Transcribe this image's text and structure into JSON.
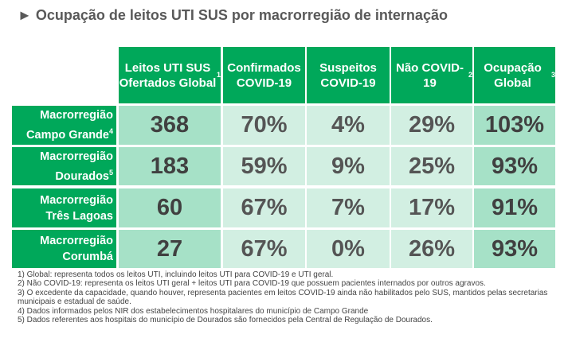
{
  "title": "► Ocupação de leitos UTI SUS por macrorregião de internação",
  "headers": [
    {
      "text": "Leitos UTI SUS Ofertados Global",
      "sup": "1"
    },
    {
      "text": "Confirmados COVID-19",
      "sup": ""
    },
    {
      "text": "Suspeitos COVID-19",
      "sup": ""
    },
    {
      "text": "Não COVID-19",
      "sup": "2"
    },
    {
      "text": "Ocupação Global",
      "sup": "3"
    }
  ],
  "rows": [
    {
      "l1": "Macrorregião",
      "l2": "Campo Grande",
      "sup": "4",
      "values": [
        "368",
        "70%",
        "4%",
        "29%",
        "103%"
      ]
    },
    {
      "l1": "Macrorregião",
      "l2": "Dourados",
      "sup": "5",
      "values": [
        "183",
        "59%",
        "9%",
        "25%",
        "93%"
      ]
    },
    {
      "l1": "Macrorregião",
      "l2": "Três Lagoas",
      "sup": "",
      "values": [
        "60",
        "67%",
        "7%",
        "17%",
        "91%"
      ]
    },
    {
      "l1": "Macrorregião",
      "l2": "Corumbá",
      "sup": "",
      "values": [
        "27",
        "67%",
        "0%",
        "26%",
        "93%"
      ]
    }
  ],
  "notes": [
    "1) Global: representa todos os leitos UTI, incluindo leitos UTI para COVID-19 e UTI geral.",
    "2) Não COVID-19: representa os leitos UTI geral + leitos UTI para COVID-19 que possuem pacientes internados por outros agravos.",
    "3) O excedente da capacidade, quando houver, representa pacientes em leitos COVID-19 ainda não habilitados pelo SUS, mantidos pelas secretarias municipais e estadual de saúde.",
    "4) Dados informados pelos NIR dos estabelecimentos hospitalares do município de Campo Grande",
    "5) Dados referentes aos hospitais do município de Dourados são fornecidos pela Central de Regulação de Dourados."
  ],
  "colors": {
    "header": "#00a85a",
    "dark_cell": "#a6e1c7",
    "light_cell": "#d2efe2"
  }
}
